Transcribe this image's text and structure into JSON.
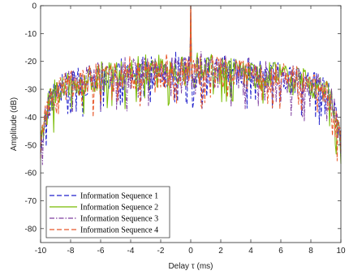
{
  "chart_data": {
    "type": "line",
    "xlabel": "Delay τ (ms)",
    "ylabel": "Amplitude (dB)",
    "xlim": [
      -10,
      10
    ],
    "ylim": [
      -85,
      0
    ],
    "xticks": [
      "-10",
      "-8",
      "-6",
      "-4",
      "-2",
      "0",
      "2",
      "4",
      "6",
      "8",
      "10"
    ],
    "yticks": [
      "0",
      "-10",
      "-20",
      "-30",
      "-40",
      "-50",
      "-60",
      "-70",
      "-80"
    ],
    "grid": false,
    "legend_position": "bottom-left",
    "peak": {
      "x": 0,
      "y": 0
    },
    "envelope": {
      "x": [
        -10,
        -9.5,
        -9,
        -8,
        -6,
        -4,
        -2,
        -0.3,
        0.3,
        2,
        4,
        6,
        8,
        9,
        9.5,
        10
      ],
      "upper": [
        -42,
        -30,
        -26,
        -23,
        -20,
        -18,
        -17,
        -16,
        -16,
        -17,
        -18,
        -20,
        -23,
        -26,
        -30,
        -42
      ],
      "mean": [
        -50,
        -36,
        -31,
        -28,
        -26,
        -25,
        -24,
        -24,
        -24,
        -24,
        -25,
        -26,
        -28,
        -31,
        -36,
        -50
      ],
      "lower": [
        -62,
        -50,
        -44,
        -42,
        -40,
        -38,
        -37,
        -37,
        -37,
        -37,
        -38,
        -40,
        -42,
        -44,
        -50,
        -62
      ]
    },
    "series": [
      {
        "name": "Information Sequence 1",
        "color": "#2222cc",
        "style": "dashed"
      },
      {
        "name": "Information Sequence 2",
        "color": "#77bb00",
        "style": "solid"
      },
      {
        "name": "Information Sequence 3",
        "color": "#7f3f9f",
        "style": "dash-dot"
      },
      {
        "name": "Information Sequence 4",
        "color": "#e8582b",
        "style": "dashed"
      }
    ]
  }
}
